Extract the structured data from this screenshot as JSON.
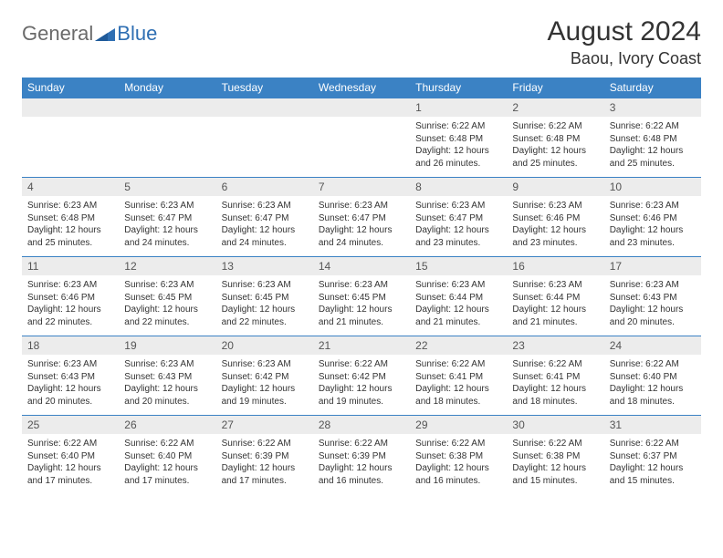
{
  "brand": {
    "general": "General",
    "blue": "Blue",
    "triangle_color": "#2f6fb3"
  },
  "header": {
    "month": "August 2024",
    "location": "Baou, Ivory Coast"
  },
  "colors": {
    "header_bg": "#3b82c4",
    "header_text": "#ffffff",
    "daynum_bg": "#ececec",
    "week_divider": "#3b82c4",
    "body_text": "#333333"
  },
  "weekdays": [
    "Sunday",
    "Monday",
    "Tuesday",
    "Wednesday",
    "Thursday",
    "Friday",
    "Saturday"
  ],
  "weeks": [
    [
      {
        "num": "",
        "sunrise": "",
        "sunset": "",
        "daylight": ""
      },
      {
        "num": "",
        "sunrise": "",
        "sunset": "",
        "daylight": ""
      },
      {
        "num": "",
        "sunrise": "",
        "sunset": "",
        "daylight": ""
      },
      {
        "num": "",
        "sunrise": "",
        "sunset": "",
        "daylight": ""
      },
      {
        "num": "1",
        "sunrise": "Sunrise: 6:22 AM",
        "sunset": "Sunset: 6:48 PM",
        "daylight": "Daylight: 12 hours and 26 minutes."
      },
      {
        "num": "2",
        "sunrise": "Sunrise: 6:22 AM",
        "sunset": "Sunset: 6:48 PM",
        "daylight": "Daylight: 12 hours and 25 minutes."
      },
      {
        "num": "3",
        "sunrise": "Sunrise: 6:22 AM",
        "sunset": "Sunset: 6:48 PM",
        "daylight": "Daylight: 12 hours and 25 minutes."
      }
    ],
    [
      {
        "num": "4",
        "sunrise": "Sunrise: 6:23 AM",
        "sunset": "Sunset: 6:48 PM",
        "daylight": "Daylight: 12 hours and 25 minutes."
      },
      {
        "num": "5",
        "sunrise": "Sunrise: 6:23 AM",
        "sunset": "Sunset: 6:47 PM",
        "daylight": "Daylight: 12 hours and 24 minutes."
      },
      {
        "num": "6",
        "sunrise": "Sunrise: 6:23 AM",
        "sunset": "Sunset: 6:47 PM",
        "daylight": "Daylight: 12 hours and 24 minutes."
      },
      {
        "num": "7",
        "sunrise": "Sunrise: 6:23 AM",
        "sunset": "Sunset: 6:47 PM",
        "daylight": "Daylight: 12 hours and 24 minutes."
      },
      {
        "num": "8",
        "sunrise": "Sunrise: 6:23 AM",
        "sunset": "Sunset: 6:47 PM",
        "daylight": "Daylight: 12 hours and 23 minutes."
      },
      {
        "num": "9",
        "sunrise": "Sunrise: 6:23 AM",
        "sunset": "Sunset: 6:46 PM",
        "daylight": "Daylight: 12 hours and 23 minutes."
      },
      {
        "num": "10",
        "sunrise": "Sunrise: 6:23 AM",
        "sunset": "Sunset: 6:46 PM",
        "daylight": "Daylight: 12 hours and 23 minutes."
      }
    ],
    [
      {
        "num": "11",
        "sunrise": "Sunrise: 6:23 AM",
        "sunset": "Sunset: 6:46 PM",
        "daylight": "Daylight: 12 hours and 22 minutes."
      },
      {
        "num": "12",
        "sunrise": "Sunrise: 6:23 AM",
        "sunset": "Sunset: 6:45 PM",
        "daylight": "Daylight: 12 hours and 22 minutes."
      },
      {
        "num": "13",
        "sunrise": "Sunrise: 6:23 AM",
        "sunset": "Sunset: 6:45 PM",
        "daylight": "Daylight: 12 hours and 22 minutes."
      },
      {
        "num": "14",
        "sunrise": "Sunrise: 6:23 AM",
        "sunset": "Sunset: 6:45 PM",
        "daylight": "Daylight: 12 hours and 21 minutes."
      },
      {
        "num": "15",
        "sunrise": "Sunrise: 6:23 AM",
        "sunset": "Sunset: 6:44 PM",
        "daylight": "Daylight: 12 hours and 21 minutes."
      },
      {
        "num": "16",
        "sunrise": "Sunrise: 6:23 AM",
        "sunset": "Sunset: 6:44 PM",
        "daylight": "Daylight: 12 hours and 21 minutes."
      },
      {
        "num": "17",
        "sunrise": "Sunrise: 6:23 AM",
        "sunset": "Sunset: 6:43 PM",
        "daylight": "Daylight: 12 hours and 20 minutes."
      }
    ],
    [
      {
        "num": "18",
        "sunrise": "Sunrise: 6:23 AM",
        "sunset": "Sunset: 6:43 PM",
        "daylight": "Daylight: 12 hours and 20 minutes."
      },
      {
        "num": "19",
        "sunrise": "Sunrise: 6:23 AM",
        "sunset": "Sunset: 6:43 PM",
        "daylight": "Daylight: 12 hours and 20 minutes."
      },
      {
        "num": "20",
        "sunrise": "Sunrise: 6:23 AM",
        "sunset": "Sunset: 6:42 PM",
        "daylight": "Daylight: 12 hours and 19 minutes."
      },
      {
        "num": "21",
        "sunrise": "Sunrise: 6:22 AM",
        "sunset": "Sunset: 6:42 PM",
        "daylight": "Daylight: 12 hours and 19 minutes."
      },
      {
        "num": "22",
        "sunrise": "Sunrise: 6:22 AM",
        "sunset": "Sunset: 6:41 PM",
        "daylight": "Daylight: 12 hours and 18 minutes."
      },
      {
        "num": "23",
        "sunrise": "Sunrise: 6:22 AM",
        "sunset": "Sunset: 6:41 PM",
        "daylight": "Daylight: 12 hours and 18 minutes."
      },
      {
        "num": "24",
        "sunrise": "Sunrise: 6:22 AM",
        "sunset": "Sunset: 6:40 PM",
        "daylight": "Daylight: 12 hours and 18 minutes."
      }
    ],
    [
      {
        "num": "25",
        "sunrise": "Sunrise: 6:22 AM",
        "sunset": "Sunset: 6:40 PM",
        "daylight": "Daylight: 12 hours and 17 minutes."
      },
      {
        "num": "26",
        "sunrise": "Sunrise: 6:22 AM",
        "sunset": "Sunset: 6:40 PM",
        "daylight": "Daylight: 12 hours and 17 minutes."
      },
      {
        "num": "27",
        "sunrise": "Sunrise: 6:22 AM",
        "sunset": "Sunset: 6:39 PM",
        "daylight": "Daylight: 12 hours and 17 minutes."
      },
      {
        "num": "28",
        "sunrise": "Sunrise: 6:22 AM",
        "sunset": "Sunset: 6:39 PM",
        "daylight": "Daylight: 12 hours and 16 minutes."
      },
      {
        "num": "29",
        "sunrise": "Sunrise: 6:22 AM",
        "sunset": "Sunset: 6:38 PM",
        "daylight": "Daylight: 12 hours and 16 minutes."
      },
      {
        "num": "30",
        "sunrise": "Sunrise: 6:22 AM",
        "sunset": "Sunset: 6:38 PM",
        "daylight": "Daylight: 12 hours and 15 minutes."
      },
      {
        "num": "31",
        "sunrise": "Sunrise: 6:22 AM",
        "sunset": "Sunset: 6:37 PM",
        "daylight": "Daylight: 12 hours and 15 minutes."
      }
    ]
  ]
}
